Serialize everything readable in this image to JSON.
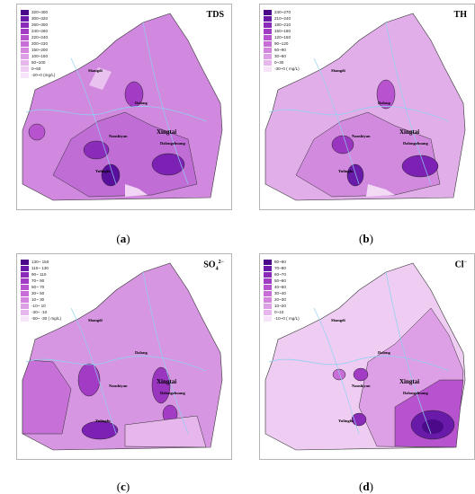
{
  "panels": [
    {
      "id": "a",
      "caption_letter": "a",
      "param_label": "TDS",
      "param_sup": "",
      "legend": [
        "320~400",
        "300~320",
        "260~300",
        "240~260",
        "220~240",
        "200~220",
        "150~200",
        "100~150",
        "50~100",
        "0~50",
        "-20~0 (mg/L)"
      ],
      "places": [
        "Shangdi",
        "Dalong",
        "Nanshiyan",
        "Xingtai",
        "Dalongzhuang",
        "Yulingfu"
      ]
    },
    {
      "id": "b",
      "caption_letter": "b",
      "param_label": "TH",
      "param_sup": "",
      "legend": [
        "240~270",
        "210~240",
        "180~210",
        "150~180",
        "120~150",
        "90~120",
        "60~90",
        "30~60",
        "0~30",
        "-30~0 ( mg/L)"
      ],
      "places": [
        "Shangdi",
        "Dalong",
        "Nanshiyan",
        "Xingtai",
        "Dalongzhuang",
        "Yulingfu"
      ]
    },
    {
      "id": "c",
      "caption_letter": "c",
      "param_label": "SO",
      "param_sup": "4",
      "param_sup2": "2−",
      "legend": [
        "130~ 150",
        "110~ 130",
        "90~ 110",
        "70~ 90",
        "50~ 70",
        "30~ 50",
        "10~ 30",
        "-10~ 10",
        "-30~ -10",
        "-50~ -30 ( mg/L)"
      ],
      "places": [
        "Shangdi",
        "Dalong",
        "Nanshiyan",
        "Xingtai",
        "Dalongzhuang",
        "Yulingfu"
      ]
    },
    {
      "id": "d",
      "caption_letter": "d",
      "param_label": "Cl",
      "param_sup": "",
      "param_sup2": "−",
      "legend": [
        "80~90",
        "70~80",
        "60~70",
        "50~60",
        "40~50",
        "30~40",
        "20~30",
        "10~20",
        "0~10",
        "-10~0 ( mg/L)"
      ],
      "places": [
        "Shangdi",
        "Dalong",
        "Nanshiyan",
        "Xingtai",
        "Dalongzhuang",
        "Yulingfu"
      ]
    }
  ],
  "colors": {
    "ramp": [
      "#4a0a8a",
      "#6a1aa8",
      "#8a2ab8",
      "#a23cc4",
      "#b753cf",
      "#c86dd8",
      "#d486df",
      "#dd9fe5",
      "#e6b6ec",
      "#efcdf2",
      "#f7e4f8"
    ],
    "river": "#8fd0f0"
  }
}
